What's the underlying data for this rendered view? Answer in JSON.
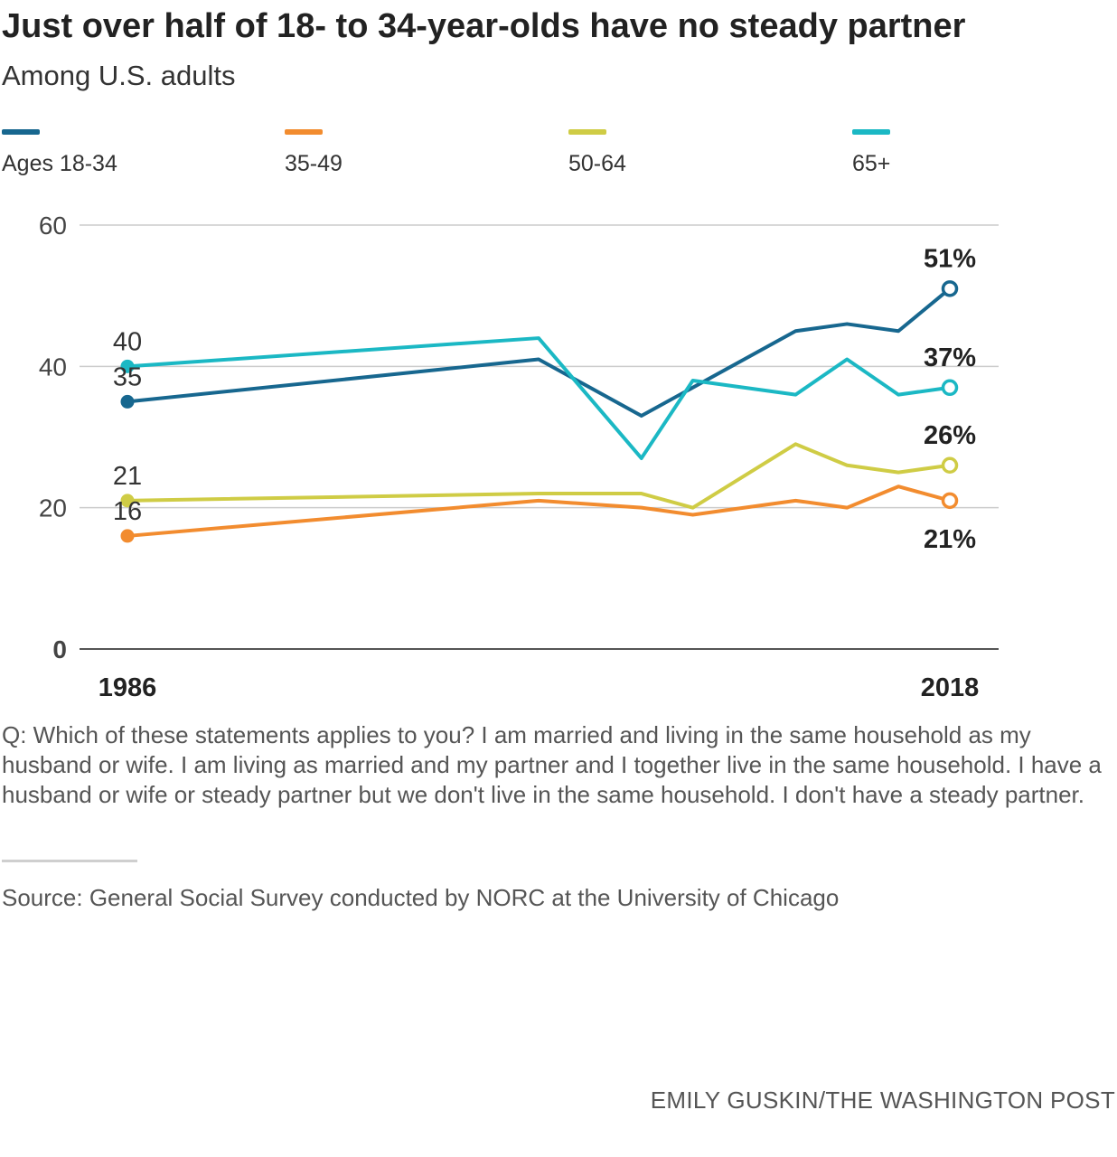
{
  "title": "Just over half of 18- to 34-year-olds have no steady partner",
  "subtitle": "Among U.S. adults",
  "legend": [
    {
      "label": "Ages 18-34",
      "color": "#17678f"
    },
    {
      "label": "35-49",
      "color": "#f28c2f"
    },
    {
      "label": "50-64",
      "color": "#cfcc45"
    },
    {
      "label": "65+",
      "color": "#1bb8c4"
    }
  ],
  "chart_data": {
    "type": "line",
    "title": "Just over half of 18- to 34-year-olds have no steady partner",
    "subtitle": "Among U.S. adults",
    "x": [
      1986,
      2002,
      2006,
      2008,
      2012,
      2014,
      2016,
      2018
    ],
    "x_tick_labels": [
      "1986",
      "2018"
    ],
    "y_ticks": [
      0,
      20,
      40,
      60
    ],
    "ylim": [
      0,
      60
    ],
    "xlim": [
      1986,
      2018
    ],
    "grid": "horizontal",
    "legend_position": "top",
    "series": [
      {
        "name": "Ages 18-34",
        "color": "#17678f",
        "values": [
          35,
          41,
          33,
          null,
          45,
          46,
          45,
          51
        ],
        "start_label": "35",
        "end_label": "51%"
      },
      {
        "name": "35-49",
        "color": "#f28c2f",
        "values": [
          16,
          21,
          20,
          19,
          21,
          20,
          23,
          21
        ],
        "start_label": "16",
        "end_label": "21%"
      },
      {
        "name": "50-64",
        "color": "#cfcc45",
        "values": [
          21,
          22,
          22,
          20,
          29,
          26,
          25,
          26
        ],
        "start_label": "21",
        "end_label": "26%"
      },
      {
        "name": "65+",
        "color": "#1bb8c4",
        "values": [
          40,
          44,
          27,
          38,
          36,
          41,
          36,
          37
        ],
        "start_label": "40",
        "end_label": "37%"
      }
    ]
  },
  "question": "Q: Which of these statements applies to you? I am married and living in the same household as my husband or wife. I am living as married and my partner and I together live in the same household. I have a husband or wife or steady partner but we don't live in the same household. I don't have a steady partner.",
  "source": "Source: General Social Survey conducted by NORC at the University of Chicago",
  "credit": "EMILY GUSKIN/THE WASHINGTON POST"
}
